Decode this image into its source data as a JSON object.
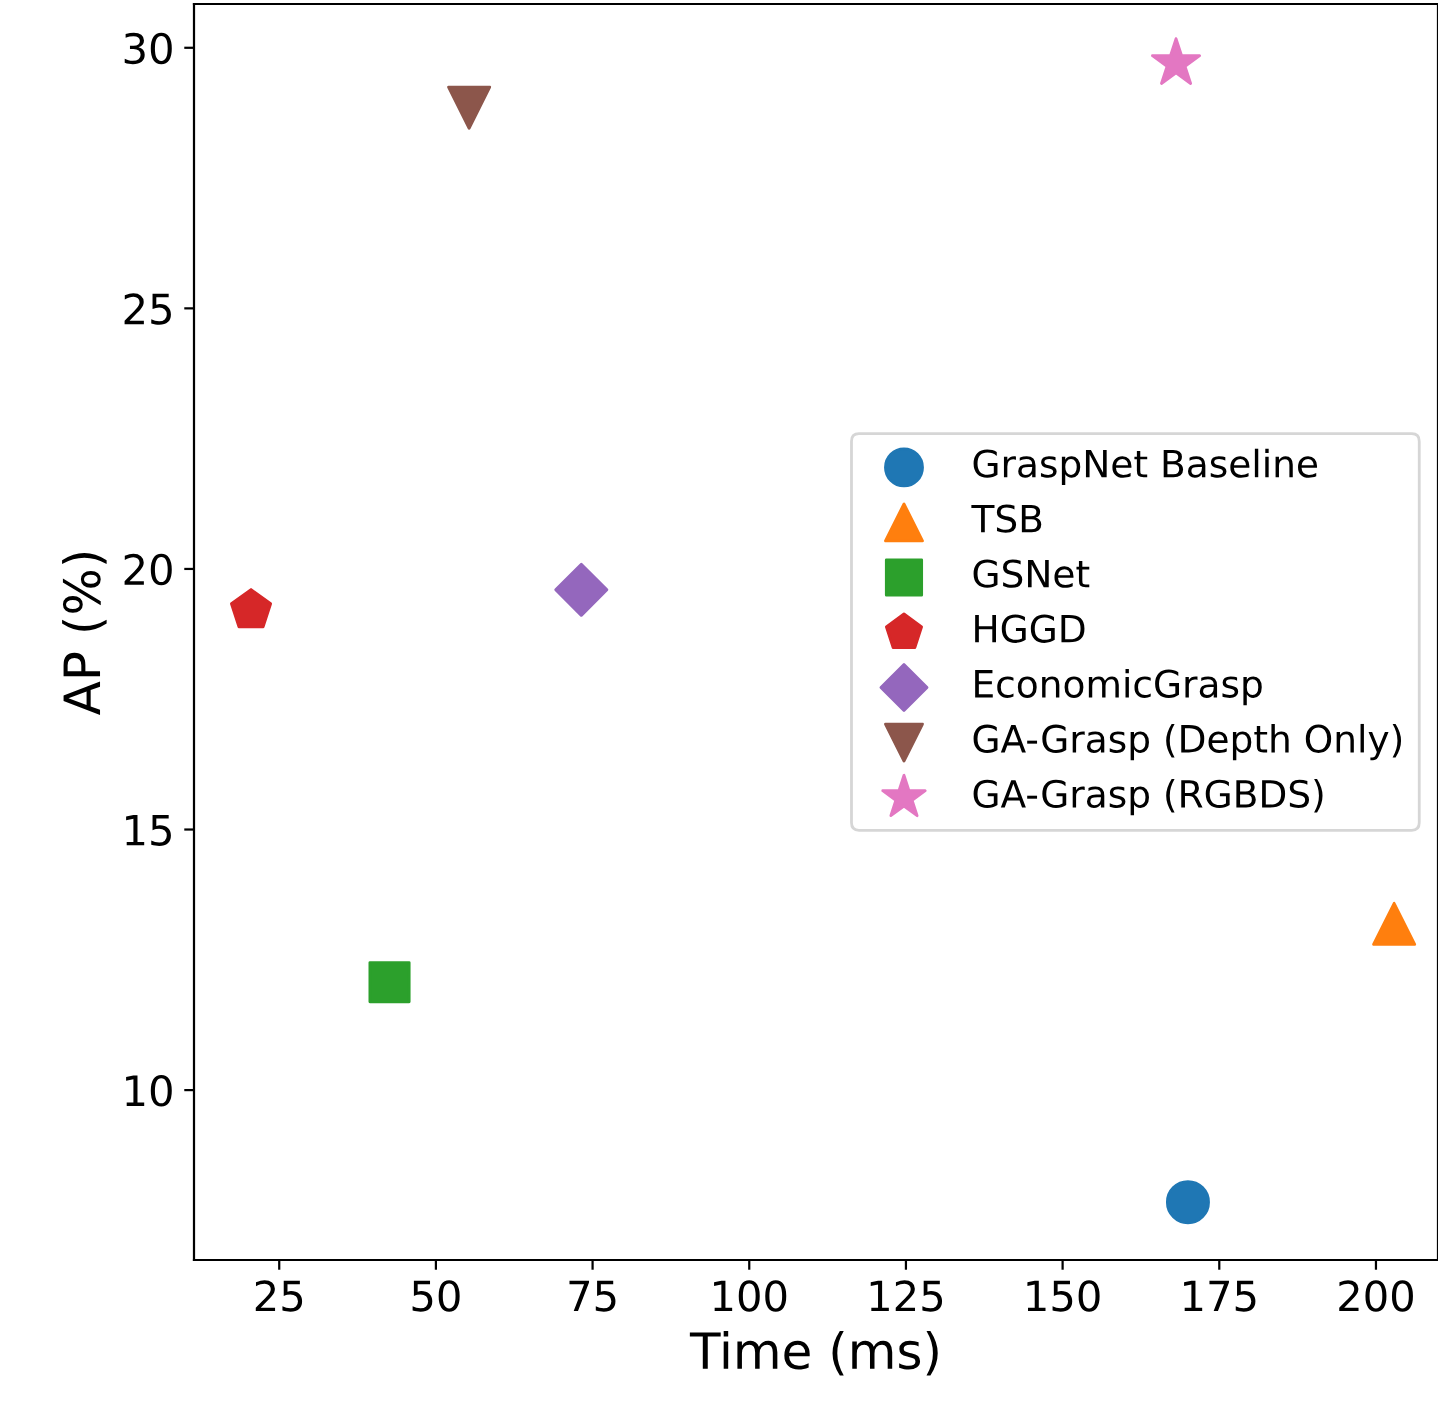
{
  "chart_data": {
    "type": "scatter",
    "xlabel": "Time (ms)",
    "ylabel": "AP (%)",
    "xlim": [
      11.4,
      209.9
    ],
    "ylim": [
      6.74,
      30.84
    ],
    "xticks": [
      25,
      50,
      75,
      100,
      125,
      150,
      175,
      200
    ],
    "yticks": [
      10,
      15,
      20,
      25,
      30
    ],
    "grid": false,
    "legend": "right",
    "series": [
      {
        "name": "GraspNet Baseline",
        "color": "#1f77b4",
        "marker": "circle",
        "x": [
          170.0
        ],
        "values": [
          7.85
        ]
      },
      {
        "name": "TSB",
        "color": "#ff7f0e",
        "marker": "triangle",
        "x": [
          202.9
        ],
        "values": [
          13.19
        ]
      },
      {
        "name": "GSNet",
        "color": "#2ca02c",
        "marker": "square",
        "x": [
          42.6
        ],
        "values": [
          12.07
        ]
      },
      {
        "name": "HGGD",
        "color": "#d62728",
        "x": [
          20.5
        ],
        "values": [
          19.21
        ]
      },
      {
        "name": "EconomicGrasp",
        "color": "#9467bd",
        "marker": "diamond",
        "x": [
          73.2
        ],
        "values": [
          19.6
        ]
      },
      {
        "name": "GA-Grasp (Depth Only)",
        "color": "#8c564b",
        "marker": "triangle_down",
        "x": [
          55.3
        ],
        "values": [
          28.85
        ]
      },
      {
        "name": "GA-Grasp (RGBDS)",
        "color": "#e377c2",
        "marker": "star",
        "x": [
          168.1
        ],
        "values": [
          29.7
        ]
      }
    ]
  }
}
